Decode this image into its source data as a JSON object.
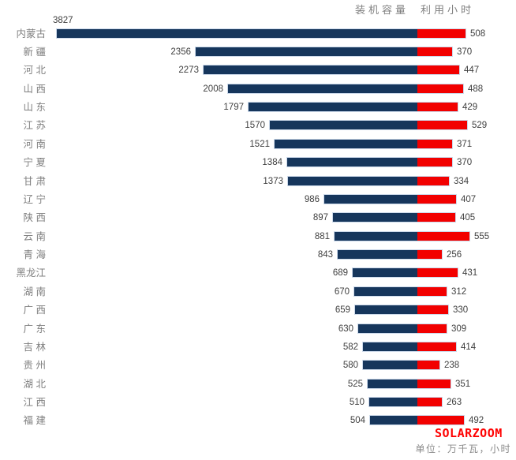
{
  "header": {
    "capacity_label": "装机容量",
    "hours_label": "利用小时"
  },
  "footer": {
    "brand": "SOLARZOOM",
    "unit_note": "单位：万千瓦，小时"
  },
  "colors": {
    "capacity_bar": "#16365c",
    "hours_bar": "#f20000",
    "category_text": "#7f7f7f",
    "value_text": "#3f3f3f",
    "bar_outline": "#ccd9ea",
    "brand_red": "#ff0000"
  },
  "chart_data": {
    "type": "bar",
    "variant": "butterfly",
    "orientation": "horizontal",
    "grid": false,
    "value_labels": true,
    "legend_position": "top",
    "unit_note": "单位：万千瓦，小时",
    "categories": [
      "内蒙古",
      "新 疆",
      "河 北",
      "山 西",
      "山 东",
      "江 苏",
      "河 南",
      "宁 夏",
      "甘 肃",
      "辽 宁",
      "陕 西",
      "云 南",
      "青 海",
      "黑龙江",
      "湖 南",
      "广 西",
      "广 东",
      "吉 林",
      "贵 州",
      "湖 北",
      "江 西",
      "福 建"
    ],
    "series": [
      {
        "name": "装机容量",
        "side": "left",
        "color": "#16365c",
        "values": [
          3827,
          2356,
          2273,
          2008,
          1797,
          1570,
          1521,
          1384,
          1373,
          986,
          897,
          881,
          843,
          689,
          670,
          659,
          630,
          582,
          580,
          525,
          510,
          504
        ]
      },
      {
        "name": "利用小时",
        "side": "right",
        "color": "#f20000",
        "values": [
          508,
          370,
          447,
          488,
          429,
          529,
          371,
          370,
          334,
          407,
          405,
          555,
          256,
          431,
          312,
          330,
          309,
          414,
          238,
          351,
          263,
          492
        ]
      }
    ]
  }
}
